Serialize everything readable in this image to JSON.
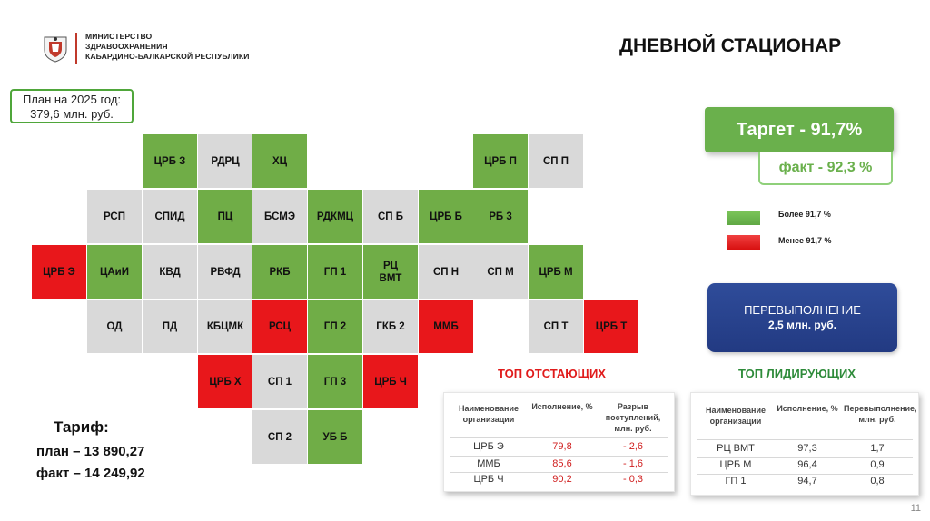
{
  "header": {
    "ministry_lines": [
      "МИНИСТЕРСТВО",
      "ЗДРАВООХРАНЕНИЯ",
      "КАБАРДИНО-БАЛКАРСКОЙ РЕСПУБЛИКИ"
    ],
    "title": "ДНЕВНОЙ СТАЦИОНАР"
  },
  "plan": {
    "line1": "План на 2025 год:",
    "line2": "379,6 млн. руб."
  },
  "grid": {
    "rows": [
      {
        "cells": [
          {
            "label": "ЦРБ З",
            "status": "green"
          },
          {
            "label": "РДРЦ",
            "status": "gray"
          },
          {
            "label": "ХЦ",
            "status": "green"
          },
          {
            "label": "ЦРБ П",
            "status": "green"
          },
          {
            "label": "СП П",
            "status": "gray"
          }
        ]
      },
      {
        "cells": [
          {
            "label": "РСП",
            "status": "gray"
          },
          {
            "label": "СПИД",
            "status": "gray"
          },
          {
            "label": "ПЦ",
            "status": "green"
          },
          {
            "label": "БСМЭ",
            "status": "gray"
          },
          {
            "label": "РДКМЦ",
            "status": "green"
          },
          {
            "label": "СП Б",
            "status": "gray"
          },
          {
            "label": "ЦРБ Б",
            "status": "green"
          },
          {
            "label": "РБ 3",
            "status": "green"
          }
        ]
      },
      {
        "cells": [
          {
            "label": "ЦРБ Э",
            "status": "red"
          },
          {
            "label": "ЦАиИ",
            "status": "green"
          },
          {
            "label": "КВД",
            "status": "gray"
          },
          {
            "label": "РВФД",
            "status": "gray"
          },
          {
            "label": "РКБ",
            "status": "green"
          },
          {
            "label": "ГП 1",
            "status": "green"
          },
          {
            "label": "РЦ ВМТ",
            "status": "green"
          },
          {
            "label": "СП Н",
            "status": "gray"
          },
          {
            "label": "СП М",
            "status": "gray"
          },
          {
            "label": "ЦРБ М",
            "status": "green"
          }
        ]
      },
      {
        "cells": [
          {
            "label": "ОД",
            "status": "gray"
          },
          {
            "label": "ПД",
            "status": "gray"
          },
          {
            "label": "КБЦМК",
            "status": "gray"
          },
          {
            "label": "РСЦ",
            "status": "red"
          },
          {
            "label": "ГП 2",
            "status": "green"
          },
          {
            "label": "ГКБ 2",
            "status": "gray"
          },
          {
            "label": "ММБ",
            "status": "red"
          },
          {
            "label": "СП Т",
            "status": "gray"
          },
          {
            "label": "ЦРБ Т",
            "status": "red"
          }
        ]
      },
      {
        "cells": [
          {
            "label": "ЦРБ Х",
            "status": "red"
          },
          {
            "label": "СП 1",
            "status": "gray"
          },
          {
            "label": "ГП 3",
            "status": "green"
          },
          {
            "label": "ЦРБ Ч",
            "status": "red"
          }
        ]
      },
      {
        "cells": [
          {
            "label": "СП 2",
            "status": "gray"
          },
          {
            "label": "УБ Б",
            "status": "green"
          }
        ]
      }
    ]
  },
  "target": {
    "target_text": "Таргет  -  91,7%",
    "fact_text": "факт  - 92,3 %"
  },
  "legend": {
    "above_label": "Более 91,7 %",
    "below_label": "Менее 91,7 %",
    "above_color": "#6ab04c",
    "below_color": "#e8171b"
  },
  "overfulfillment": {
    "title": "ПЕРЕВЫПОЛНЕНИЕ",
    "value": "2,5 млн. руб."
  },
  "lagging": {
    "title": "ТОП ОТСТАЮЩИХ",
    "headers": [
      "Наименование организации",
      "Исполнение, %",
      "Разрыв поступлений, млн. руб."
    ],
    "rows": [
      [
        "ЦРБ Э",
        "79,8",
        "- 2,6"
      ],
      [
        "ММБ",
        "85,6",
        "- 1,6"
      ],
      [
        "ЦРБ Ч",
        "90,2",
        "- 0,3"
      ]
    ]
  },
  "leading": {
    "title": "ТОП ЛИДИРУЮЩИХ",
    "headers": [
      "Наименование организации",
      "Исполнение, %",
      "Перевыполнение, млн. руб."
    ],
    "rows": [
      [
        "РЦ ВМТ",
        "97,3",
        "1,7"
      ],
      [
        "ЦРБ М",
        "96,4",
        "0,9"
      ],
      [
        "ГП 1",
        "94,7",
        "0,8"
      ]
    ]
  },
  "tariff": {
    "title": "Тариф:",
    "plan": "план – 13 890,27",
    "fact": "факт – 14 249,92"
  },
  "page_number": "11"
}
